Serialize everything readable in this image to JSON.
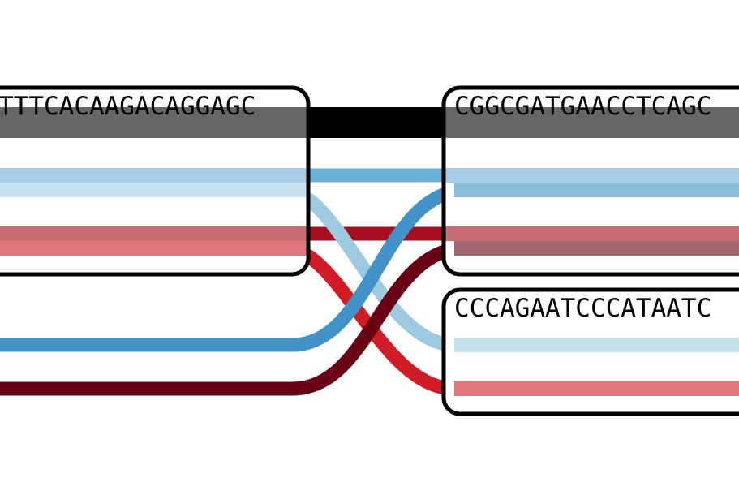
{
  "nodes": {
    "left_top": {
      "sequence": "TTTCACAAGACAGGAGC"
    },
    "right_top": {
      "sequence": "CGGCGATGAACCTCAGC"
    },
    "right_bottom": {
      "sequence": "CCCAGAATCCCATAATC"
    }
  },
  "colors": {
    "reference_path": "#000000",
    "reference_in_node": "#666666",
    "light_blue": "#a6cde6",
    "pale_blue": "#c6e0ee",
    "mid_blue": "#4393c8",
    "light_red": "#e1777c",
    "crimson": "#d01c24",
    "dark_red": "#6a0013",
    "node_border": "#000000"
  }
}
